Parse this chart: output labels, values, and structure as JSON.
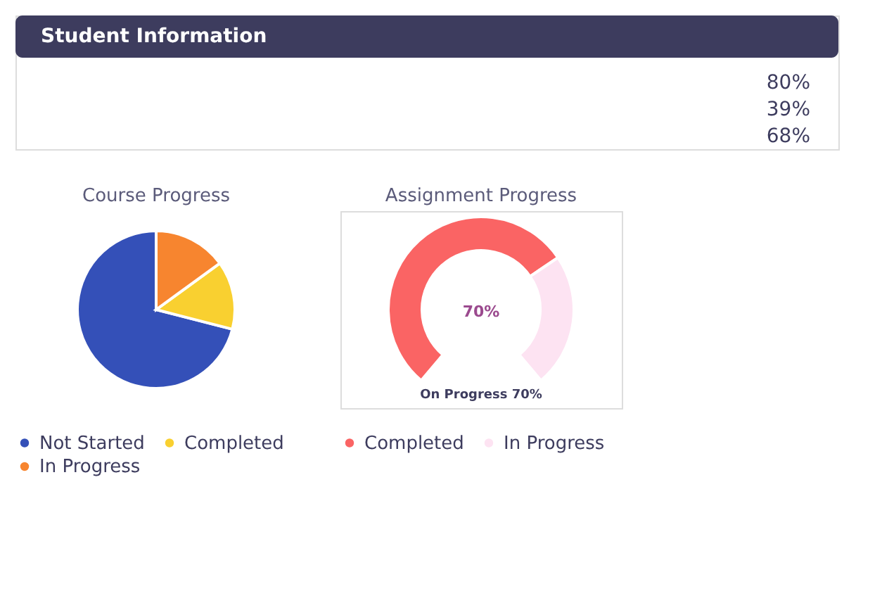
{
  "chart_data": [
    {
      "type": "other",
      "title": "Student Information",
      "annotations": [
        "80%",
        "39%",
        "68%"
      ]
    },
    {
      "type": "pie",
      "title": "Course Progress",
      "categories": [
        "Not Started",
        "Completed",
        "In Progress"
      ],
      "values": [
        71,
        14,
        15
      ],
      "colors": [
        "#3450b8",
        "#f9d030",
        "#f7852f"
      ],
      "legend": "bottom"
    },
    {
      "type": "donut",
      "title": "Assignment Progress",
      "categories": [
        "Completed",
        "In Progress"
      ],
      "values": [
        70,
        30
      ],
      "colors": [
        "#fa6464",
        "#fde3f2"
      ],
      "legend": "bottom",
      "annotations": [
        "70%",
        "On Progress 70%"
      ]
    }
  ]
}
